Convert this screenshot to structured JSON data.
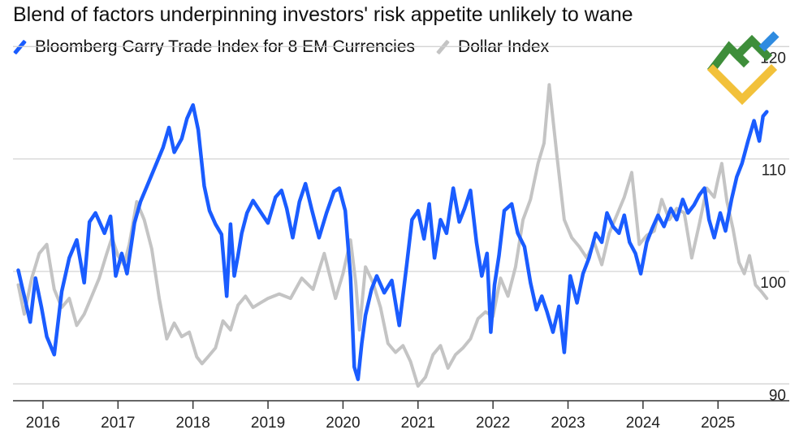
{
  "colors": {
    "carry": "#1a5cff",
    "dollar": "#c4c4c4",
    "grid": "#cfcfcf",
    "axis": "#333333",
    "logo_green": "#3e8e3a",
    "logo_yellow": "#f2c13a",
    "logo_blue": "#2f8be0"
  },
  "chart_data": {
    "type": "line",
    "title": "Blend of factors underpinning investors' risk appetite unlikely to wane",
    "xlabel": "",
    "ylabel": "",
    "xlim": [
      2015.6,
      2025.95
    ],
    "ylim": [
      88.5,
      118.5
    ],
    "yticks": [
      90,
      100,
      110,
      120
    ],
    "ytick_labels": [
      "90",
      "100",
      "110",
      "120"
    ],
    "xticks": [
      2016,
      2017,
      2018,
      2019,
      2020,
      2021,
      2022,
      2023,
      2024,
      2025
    ],
    "xtick_labels": [
      "2016",
      "2017",
      "2018",
      "2019",
      "2020",
      "2021",
      "2022",
      "2023",
      "2024",
      "2025"
    ],
    "grid": true,
    "legend_position": "top-left",
    "series": [
      {
        "name": "Bloomberg Carry Trade Index for 8 EM Currencies",
        "color_key": "carry",
        "x": [
          2015.67,
          2015.75,
          2015.83,
          2015.9,
          2015.98,
          2016.05,
          2016.15,
          2016.25,
          2016.35,
          2016.45,
          2016.55,
          2016.62,
          2016.7,
          2016.82,
          2016.9,
          2016.97,
          2017.05,
          2017.12,
          2017.22,
          2017.3,
          2017.4,
          2017.5,
          2017.6,
          2017.68,
          2017.75,
          2017.85,
          2017.92,
          2018.0,
          2018.07,
          2018.15,
          2018.22,
          2018.3,
          2018.38,
          2018.45,
          2018.5,
          2018.55,
          2018.6,
          2018.65,
          2018.72,
          2018.8,
          2018.9,
          2019.0,
          2019.1,
          2019.18,
          2019.25,
          2019.33,
          2019.42,
          2019.5,
          2019.58,
          2019.68,
          2019.78,
          2019.88,
          2019.95,
          2020.03,
          2020.1,
          2020.15,
          2020.2,
          2020.25,
          2020.3,
          2020.38,
          2020.45,
          2020.55,
          2020.65,
          2020.75,
          2020.85,
          2020.92,
          2021.0,
          2021.08,
          2021.15,
          2021.22,
          2021.3,
          2021.38,
          2021.47,
          2021.55,
          2021.62,
          2021.7,
          2021.78,
          2021.85,
          2021.92,
          2021.97,
          2022.02,
          2022.08,
          2022.15,
          2022.25,
          2022.33,
          2022.42,
          2022.5,
          2022.58,
          2022.65,
          2022.72,
          2022.8,
          2022.88,
          2022.95,
          2023.03,
          2023.12,
          2023.2,
          2023.28,
          2023.37,
          2023.45,
          2023.52,
          2023.6,
          2023.68,
          2023.75,
          2023.82,
          2023.9,
          2023.97,
          2024.05,
          2024.12,
          2024.2,
          2024.28,
          2024.37,
          2024.45,
          2024.53,
          2024.6,
          2024.68,
          2024.75,
          2024.82,
          2024.88,
          2024.95,
          2025.03,
          2025.1,
          2025.18,
          2025.25,
          2025.32,
          2025.4,
          2025.48,
          2025.55,
          2025.6,
          2025.65
        ],
        "values": [
          100.1,
          97.8,
          95.5,
          99.4,
          96.8,
          94.2,
          92.6,
          98.2,
          101.2,
          102.8,
          99.0,
          104.4,
          105.2,
          103.4,
          104.9,
          99.6,
          101.6,
          99.8,
          104.3,
          106.2,
          107.8,
          109.4,
          111.0,
          112.8,
          110.6,
          111.8,
          113.6,
          114.8,
          112.6,
          107.6,
          105.4,
          104.2,
          103.3,
          97.8,
          104.2,
          99.6,
          101.4,
          103.4,
          105.2,
          106.3,
          105.3,
          104.3,
          106.6,
          107.2,
          105.6,
          103.0,
          106.2,
          107.8,
          105.6,
          103.0,
          105.2,
          107.1,
          107.4,
          105.4,
          99.5,
          91.5,
          90.4,
          93.6,
          96.1,
          98.4,
          99.6,
          98.1,
          99.2,
          95.2,
          100.6,
          104.6,
          105.4,
          102.9,
          106.0,
          101.2,
          104.6,
          103.4,
          107.4,
          104.4,
          105.6,
          107.2,
          102.6,
          99.6,
          101.6,
          94.6,
          98.8,
          101.4,
          105.4,
          106.0,
          103.4,
          102.2,
          99.0,
          96.6,
          97.8,
          96.4,
          94.6,
          96.9,
          92.8,
          99.6,
          97.2,
          99.8,
          101.2,
          103.4,
          102.6,
          105.2,
          104.0,
          103.4,
          105.0,
          102.6,
          101.6,
          99.8,
          102.6,
          103.8,
          105.0,
          104.0,
          105.6,
          104.6,
          106.4,
          105.2,
          105.9,
          106.8,
          107.4,
          104.6,
          103.0,
          105.2,
          103.6,
          106.4,
          108.4,
          109.6,
          111.6,
          113.4,
          111.6,
          113.8,
          114.2
        ]
      },
      {
        "name": "Dollar Index",
        "color_key": "dollar",
        "x": [
          2015.67,
          2015.75,
          2015.85,
          2015.95,
          2016.05,
          2016.15,
          2016.25,
          2016.35,
          2016.45,
          2016.55,
          2016.65,
          2016.75,
          2016.85,
          2016.92,
          2017.0,
          2017.08,
          2017.15,
          2017.25,
          2017.35,
          2017.45,
          2017.55,
          2017.65,
          2017.75,
          2017.85,
          2017.95,
          2018.05,
          2018.12,
          2018.2,
          2018.3,
          2018.4,
          2018.5,
          2018.6,
          2018.7,
          2018.8,
          2018.9,
          2019.0,
          2019.15,
          2019.3,
          2019.45,
          2019.6,
          2019.75,
          2019.9,
          2020.0,
          2020.1,
          2020.17,
          2020.22,
          2020.3,
          2020.4,
          2020.5,
          2020.6,
          2020.7,
          2020.8,
          2020.9,
          2021.0,
          2021.1,
          2021.2,
          2021.3,
          2021.4,
          2021.5,
          2021.6,
          2021.7,
          2021.8,
          2021.9,
          2022.0,
          2022.1,
          2022.2,
          2022.3,
          2022.4,
          2022.5,
          2022.6,
          2022.68,
          2022.75,
          2022.85,
          2022.95,
          2023.05,
          2023.15,
          2023.25,
          2023.35,
          2023.45,
          2023.55,
          2023.65,
          2023.75,
          2023.85,
          2023.95,
          2024.05,
          2024.15,
          2024.25,
          2024.35,
          2024.45,
          2024.55,
          2024.65,
          2024.75,
          2024.85,
          2024.95,
          2025.0,
          2025.05,
          2025.12,
          2025.2,
          2025.28,
          2025.35,
          2025.42,
          2025.5,
          2025.58,
          2025.65
        ],
        "values": [
          98.8,
          96.2,
          99.4,
          101.6,
          102.4,
          98.4,
          96.8,
          97.6,
          95.2,
          96.2,
          97.8,
          99.4,
          101.6,
          103.0,
          101.4,
          100.6,
          102.4,
          106.2,
          104.6,
          102.0,
          97.6,
          94.0,
          95.4,
          94.2,
          94.6,
          92.4,
          91.8,
          92.4,
          93.2,
          95.6,
          94.8,
          97.0,
          97.8,
          96.8,
          97.2,
          97.6,
          98.0,
          97.6,
          99.4,
          98.4,
          101.6,
          97.6,
          99.8,
          102.8,
          99.0,
          94.8,
          100.4,
          99.0,
          96.8,
          93.6,
          92.8,
          93.4,
          92.0,
          89.8,
          90.6,
          92.6,
          93.4,
          91.4,
          92.6,
          93.2,
          94.0,
          95.8,
          96.4,
          96.0,
          99.4,
          97.8,
          100.4,
          104.6,
          106.4,
          109.6,
          111.4,
          116.6,
          110.4,
          104.6,
          103.0,
          102.2,
          101.2,
          102.6,
          100.6,
          103.4,
          105.0,
          106.6,
          108.8,
          102.4,
          103.2,
          103.6,
          106.4,
          104.6,
          105.6,
          105.2,
          101.2,
          104.2,
          107.4,
          106.6,
          108.2,
          109.6,
          106.2,
          103.8,
          100.8,
          99.8,
          101.4,
          98.8,
          98.2,
          97.6
        ]
      }
    ]
  }
}
